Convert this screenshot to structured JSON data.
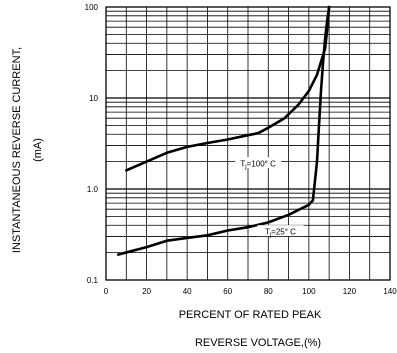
{
  "chart_data": {
    "type": "line",
    "title": "",
    "xlabel_line1": "PERCENT OF RATED PEAK",
    "xlabel_line2": "REVERSE VOLTAGE,(%)",
    "ylabel_line1": "INSTANTANEOUS REVERSE CURRENT,",
    "ylabel_line2": "(mA)",
    "x_scale": "linear",
    "y_scale": "log",
    "xlim": [
      0,
      140
    ],
    "ylim": [
      0.1,
      100
    ],
    "x_ticks": [
      "0",
      "20",
      "40",
      "60",
      "80",
      "100",
      "120",
      "140"
    ],
    "y_ticks": [
      "0.1",
      "1.0",
      "10",
      "100"
    ],
    "grid": true,
    "annotations": [
      {
        "text_main": "T",
        "text_sub": "j",
        "text_rest": "=100° C",
        "x": 75,
        "y": 1.9
      },
      {
        "text_main": "T",
        "text_sub": "j",
        "text_rest": "=25° C",
        "x": 86,
        "y": 0.34
      }
    ],
    "series": [
      {
        "x": [
          10,
          20,
          30,
          40,
          50,
          60,
          70,
          75,
          80,
          88,
          95,
          100,
          104,
          106,
          108,
          109,
          110
        ],
        "y": [
          1.6,
          2.0,
          2.5,
          2.9,
          3.2,
          3.5,
          3.9,
          4.1,
          4.7,
          6.0,
          8.5,
          12,
          18,
          25,
          35,
          55,
          100
        ]
      },
      {
        "x": [
          6,
          20,
          30,
          40,
          50,
          60,
          70,
          80,
          90,
          100,
          102,
          104,
          105,
          106,
          107,
          108,
          109,
          110
        ],
        "y": [
          0.19,
          0.23,
          0.27,
          0.29,
          0.31,
          0.35,
          0.38,
          0.43,
          0.52,
          0.67,
          0.75,
          2.0,
          5.0,
          12,
          25,
          45,
          70,
          100
        ]
      }
    ]
  }
}
